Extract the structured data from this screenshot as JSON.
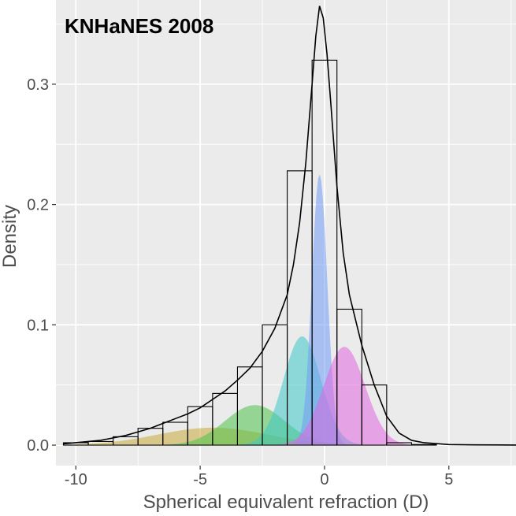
{
  "chart_data": {
    "type": "bar",
    "title": "KNHaNES 2008",
    "xlabel": "Spherical equivalent refraction (D)",
    "ylabel": "Density",
    "xlim": [
      -10.8,
      7.7
    ],
    "ylim": [
      -0.017,
      0.37
    ],
    "x_ticks": [
      -10,
      -5,
      0,
      5
    ],
    "x_tick_labels": [
      "-10",
      "-5",
      "0",
      "5"
    ],
    "y_ticks": [
      0.0,
      0.1,
      0.2,
      0.3
    ],
    "y_tick_labels": [
      "0.0",
      "0.1",
      "0.2",
      "0.3"
    ],
    "grid": true,
    "background": "#ebebeb",
    "histogram": {
      "bin_edges": [
        -10.5,
        -9.5,
        -8.5,
        -7.5,
        -6.5,
        -5.5,
        -4.5,
        -3.5,
        -2.5,
        -1.5,
        -0.5,
        0.5,
        1.5,
        2.5,
        3.5,
        4.5
      ],
      "values": [
        0.002,
        0.003,
        0.007,
        0.014,
        0.019,
        0.032,
        0.043,
        0.065,
        0.1,
        0.228,
        0.32,
        0.113,
        0.05,
        0.002,
        0.0005
      ]
    },
    "components": [
      {
        "mean": -4.5,
        "sd": 2.2,
        "weight": 0.08,
        "color": "#c9a93a"
      },
      {
        "mean": -2.8,
        "sd": 1.2,
        "weight": 0.1,
        "color": "#4cc24c"
      },
      {
        "mean": -0.9,
        "sd": 0.75,
        "weight": 0.17,
        "color": "#3ec9c9"
      },
      {
        "mean": -0.2,
        "sd": 0.31,
        "weight": 0.175,
        "color": "#6f9cf5"
      },
      {
        "mean": 0.8,
        "sd": 0.83,
        "weight": 0.17,
        "color": "#e066e0"
      }
    ],
    "density_curve": {
      "type": "line",
      "x": [
        -10.5,
        -10,
        -9.5,
        -9,
        -8.5,
        -8,
        -7.5,
        -7,
        -6.5,
        -6,
        -5.5,
        -5,
        -4.5,
        -4,
        -3.5,
        -3,
        -2.5,
        -2,
        -1.5,
        -1.25,
        -1,
        -0.75,
        -0.5,
        -0.35,
        -0.2,
        -0.05,
        0.1,
        0.25,
        0.5,
        0.75,
        1,
        1.5,
        2,
        2.5,
        3,
        3.5,
        4,
        5,
        6,
        7.7
      ],
      "y": [
        0.001,
        0.002,
        0.003,
        0.004,
        0.006,
        0.008,
        0.011,
        0.014,
        0.018,
        0.022,
        0.026,
        0.031,
        0.038,
        0.045,
        0.054,
        0.064,
        0.078,
        0.097,
        0.125,
        0.15,
        0.185,
        0.235,
        0.3,
        0.34,
        0.365,
        0.355,
        0.325,
        0.285,
        0.215,
        0.16,
        0.125,
        0.083,
        0.05,
        0.024,
        0.01,
        0.004,
        0.002,
        0.0005,
        0.0002,
        0.0001
      ]
    }
  }
}
